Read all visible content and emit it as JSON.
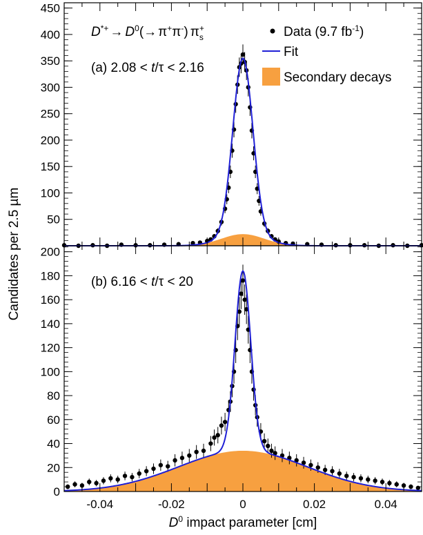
{
  "figure": {
    "xlabel_main": "D",
    "xlabel_sup": "0",
    "xlabel_rest": " impact parameter [cm]",
    "ylabel": "Candidates per 2.5 µm",
    "colors": {
      "data": "#000000",
      "fit": "#1f1fd6",
      "secondary": "#f7a040"
    },
    "legend": {
      "data_label": "Data (9.7 fb",
      "data_sup": "-1",
      "data_close": ")",
      "fit_label": "Fit",
      "secondary_label": "Secondary decays",
      "placement": "top-right"
    },
    "decay": {
      "d": "D",
      "dsup": "*+",
      "arrow": "→",
      "d0": "D",
      "d0sup": "0",
      "open": "(→",
      "pi1": "π",
      "pi1sup": "+",
      "pi2": "π",
      "pi2sup": "-",
      "close": ")",
      "pis": "π",
      "pissup": "+",
      "pissub": "s"
    }
  },
  "chart_data": [
    {
      "type": "scatter",
      "panel": "(a)",
      "label_prefix": "(a) 2.08 < ",
      "label_t": "t",
      "label_suffix": "/τ < 2.16",
      "xlim": [
        -0.05,
        0.05
      ],
      "ylim": [
        0,
        460
      ],
      "yticks": [
        50,
        100,
        150,
        200,
        250,
        300,
        350,
        400,
        450
      ],
      "xticks": [
        -0.04,
        -0.02,
        0,
        0.02,
        0.04
      ],
      "fit": {
        "peak": 333,
        "sigma": 0.0028,
        "tail_amp": 22,
        "tail_width": 0.006
      },
      "secondary": {
        "peak": 22,
        "width": 0.006
      },
      "series": [
        {
          "name": "Data",
          "x": [
            -0.05,
            -0.046,
            -0.042,
            -0.038,
            -0.034,
            -0.03,
            -0.026,
            -0.022,
            -0.018,
            -0.014,
            -0.012,
            -0.01,
            -0.009,
            -0.008,
            -0.007,
            -0.006,
            -0.005,
            -0.0045,
            -0.004,
            -0.0035,
            -0.003,
            -0.0025,
            -0.002,
            -0.0015,
            -0.001,
            -0.0005,
            0,
            0.0005,
            0.001,
            0.0015,
            0.002,
            0.0025,
            0.003,
            0.0035,
            0.004,
            0.0045,
            0.005,
            0.006,
            0.007,
            0.008,
            0.009,
            0.01,
            0.012,
            0.014,
            0.018,
            0.022,
            0.026,
            0.03,
            0.034,
            0.038,
            0.042,
            0.046,
            0.05
          ],
          "y": [
            1,
            0,
            1,
            0,
            2,
            1,
            1,
            2,
            3,
            5,
            6,
            9,
            12,
            18,
            28,
            45,
            70,
            88,
            110,
            140,
            180,
            220,
            268,
            305,
            338,
            345,
            362,
            348,
            332,
            300,
            262,
            218,
            175,
            140,
            108,
            85,
            65,
            42,
            28,
            18,
            12,
            8,
            5,
            4,
            3,
            2,
            1,
            1,
            1,
            0,
            1,
            0,
            1
          ]
        }
      ]
    },
    {
      "type": "scatter",
      "panel": "(b)",
      "label_prefix": "(b) 6.16 < ",
      "label_t": "t",
      "label_suffix": "/τ < 20",
      "xlim": [
        -0.05,
        0.05
      ],
      "ylim": [
        0,
        205
      ],
      "yticks": [
        0,
        20,
        40,
        60,
        80,
        100,
        120,
        140,
        160,
        180,
        200
      ],
      "xticks": [
        -0.04,
        -0.02,
        0,
        0.02,
        0.04
      ],
      "xticklabels": [
        "-0.04",
        "-0.02",
        "0",
        "0.02",
        "0.04"
      ],
      "fit": {
        "peak": 150,
        "sigma": 0.0022,
        "tail_amp": 34,
        "tail_width": 0.018
      },
      "secondary": {
        "peak": 34,
        "width": 0.018
      },
      "series": [
        {
          "name": "Data",
          "x": [
            -0.049,
            -0.047,
            -0.045,
            -0.043,
            -0.041,
            -0.039,
            -0.037,
            -0.035,
            -0.033,
            -0.031,
            -0.029,
            -0.027,
            -0.025,
            -0.023,
            -0.021,
            -0.019,
            -0.017,
            -0.015,
            -0.013,
            -0.011,
            -0.009,
            -0.008,
            -0.007,
            -0.006,
            -0.005,
            -0.004,
            -0.0035,
            -0.003,
            -0.0025,
            -0.002,
            -0.0015,
            -0.001,
            -0.0005,
            0,
            0.0005,
            0.001,
            0.0015,
            0.002,
            0.0025,
            0.003,
            0.0035,
            0.004,
            0.005,
            0.006,
            0.007,
            0.008,
            0.009,
            0.011,
            0.013,
            0.015,
            0.017,
            0.019,
            0.021,
            0.023,
            0.025,
            0.027,
            0.029,
            0.031,
            0.033,
            0.035,
            0.037,
            0.039,
            0.041,
            0.043,
            0.045,
            0.047,
            0.049
          ],
          "y": [
            4,
            6,
            5,
            8,
            7,
            9,
            11,
            10,
            13,
            12,
            15,
            17,
            19,
            22,
            21,
            26,
            28,
            30,
            33,
            34,
            40,
            45,
            47,
            55,
            58,
            68,
            75,
            88,
            100,
            118,
            138,
            150,
            165,
            176,
            160,
            152,
            135,
            118,
            100,
            85,
            72,
            62,
            50,
            42,
            38,
            34,
            32,
            30,
            28,
            26,
            24,
            22,
            20,
            18,
            17,
            15,
            13,
            12,
            11,
            10,
            9,
            8,
            7,
            6,
            5,
            4,
            3
          ]
        }
      ]
    }
  ]
}
